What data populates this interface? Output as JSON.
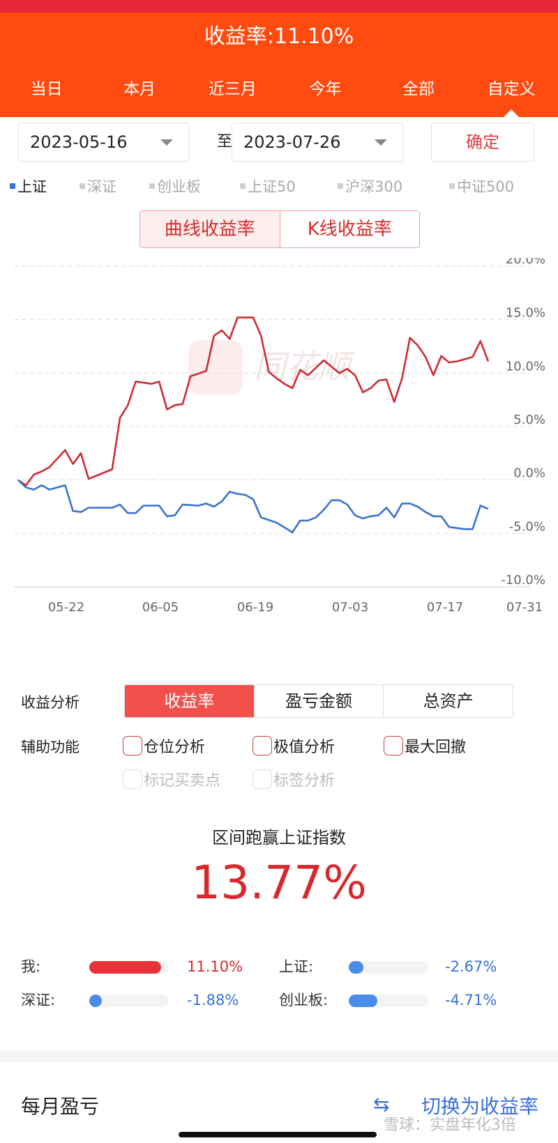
{
  "header": {
    "title": "收益率:11.10%"
  },
  "tabs": [
    {
      "label": "当日",
      "active": false
    },
    {
      "label": "本月",
      "active": false
    },
    {
      "label": "近三月",
      "active": false
    },
    {
      "label": "今年",
      "active": false
    },
    {
      "label": "全部",
      "active": false
    },
    {
      "label": "自定义",
      "active": true
    }
  ],
  "date_range": {
    "start": "2023-05-16",
    "to_label": "至",
    "end": "2023-07-26",
    "confirm_label": "确定"
  },
  "indices": [
    {
      "label": "上证",
      "active": true
    },
    {
      "label": "深证",
      "active": false
    },
    {
      "label": "创业板",
      "active": false
    },
    {
      "label": "上证50",
      "active": false
    },
    {
      "label": "沪深300",
      "active": false
    },
    {
      "label": "中证500",
      "active": false
    }
  ],
  "chart_mode": {
    "curve_label": "曲线收益率",
    "kline_label": "K线收益率"
  },
  "chart_data": {
    "type": "line",
    "y_ticks": [
      "20.0%",
      "15.0%",
      "10.0%",
      "5.0%",
      "0.0%",
      "-5.0%",
      "-10.0%"
    ],
    "x_ticks": [
      "05-22",
      "06-05",
      "06-19",
      "07-03",
      "07-17",
      "07-31"
    ],
    "ylim": [
      -10,
      20
    ],
    "grid": true,
    "watermark": "同花顺",
    "colors": {
      "mine": "#cc2b33",
      "index": "#3a72cc"
    },
    "series": [
      {
        "key": "mine",
        "values": [
          [
            0,
            0
          ],
          [
            1,
            -0.5
          ],
          [
            2,
            0.5
          ],
          [
            3,
            0.8
          ],
          [
            4,
            1.2
          ],
          [
            5,
            2.0
          ],
          [
            6,
            2.8
          ],
          [
            7,
            1.5
          ],
          [
            8,
            2.5
          ],
          [
            9,
            0.1
          ],
          [
            10,
            0.4
          ],
          [
            12,
            1.0
          ],
          [
            13,
            5.8
          ],
          [
            14,
            7.0
          ],
          [
            15,
            9.2
          ],
          [
            16,
            9.1
          ],
          [
            17,
            9.0
          ],
          [
            18,
            9.2
          ],
          [
            19,
            6.6
          ],
          [
            20,
            7.0
          ],
          [
            21,
            7.1
          ],
          [
            22,
            9.7
          ],
          [
            24,
            10.2
          ],
          [
            25,
            13.5
          ],
          [
            26,
            14.0
          ],
          [
            27,
            13.2
          ],
          [
            28,
            15.2
          ],
          [
            30,
            15.2
          ],
          [
            31,
            13.5
          ],
          [
            32,
            10.1
          ],
          [
            33,
            9.5
          ],
          [
            34,
            9.0
          ],
          [
            35,
            8.6
          ],
          [
            36,
            10.3
          ],
          [
            37,
            9.8
          ],
          [
            38,
            10.5
          ],
          [
            39,
            11.2
          ],
          [
            40,
            10.6
          ],
          [
            41,
            10.0
          ],
          [
            42,
            10.4
          ],
          [
            43,
            9.8
          ],
          [
            44,
            8.2
          ],
          [
            45,
            8.6
          ],
          [
            46,
            9.3
          ],
          [
            47,
            9.4
          ],
          [
            48,
            7.3
          ],
          [
            49,
            9.5
          ],
          [
            50,
            13.3
          ],
          [
            51,
            12.6
          ],
          [
            52,
            11.5
          ],
          [
            53,
            9.8
          ],
          [
            54,
            11.6
          ],
          [
            55,
            11.0
          ],
          [
            56,
            11.1
          ],
          [
            57,
            11.3
          ],
          [
            58,
            11.5
          ],
          [
            59,
            13.0
          ],
          [
            60,
            11.1
          ]
        ]
      },
      {
        "key": "index",
        "values": [
          [
            0,
            0
          ],
          [
            1,
            -0.7
          ],
          [
            2,
            -0.9
          ],
          [
            3,
            -0.5
          ],
          [
            4,
            -0.9
          ],
          [
            5,
            -0.7
          ],
          [
            6,
            -0.5
          ],
          [
            7,
            -2.9
          ],
          [
            8,
            -3.0
          ],
          [
            9,
            -2.6
          ],
          [
            12,
            -2.6
          ],
          [
            13,
            -2.3
          ],
          [
            14,
            -3.1
          ],
          [
            15,
            -3.1
          ],
          [
            16,
            -2.4
          ],
          [
            18,
            -2.4
          ],
          [
            19,
            -3.4
          ],
          [
            20,
            -3.3
          ],
          [
            21,
            -2.3
          ],
          [
            23,
            -2.4
          ],
          [
            24,
            -2.2
          ],
          [
            25,
            -2.5
          ],
          [
            26,
            -2.0
          ],
          [
            27,
            -1.1
          ],
          [
            28,
            -1.3
          ],
          [
            29,
            -1.4
          ],
          [
            30,
            -1.8
          ],
          [
            31,
            -3.5
          ],
          [
            33,
            -4.0
          ],
          [
            35,
            -4.9
          ],
          [
            36,
            -3.8
          ],
          [
            37,
            -3.8
          ],
          [
            38,
            -3.5
          ],
          [
            39,
            -2.8
          ],
          [
            40,
            -1.9
          ],
          [
            41,
            -1.9
          ],
          [
            42,
            -2.3
          ],
          [
            43,
            -3.3
          ],
          [
            44,
            -3.6
          ],
          [
            45,
            -3.4
          ],
          [
            46,
            -3.3
          ],
          [
            47,
            -2.6
          ],
          [
            48,
            -3.5
          ],
          [
            49,
            -2.2
          ],
          [
            50,
            -2.2
          ],
          [
            51,
            -2.5
          ],
          [
            52,
            -3.0
          ],
          [
            53,
            -3.4
          ],
          [
            54,
            -3.4
          ],
          [
            55,
            -4.4
          ],
          [
            56,
            -4.5
          ],
          [
            57,
            -4.6
          ],
          [
            58,
            -4.6
          ],
          [
            59,
            -2.4
          ],
          [
            60,
            -2.7
          ]
        ]
      }
    ]
  },
  "analysis": {
    "label": "收益分析",
    "options": [
      {
        "label": "收益率",
        "active": true
      },
      {
        "label": "盈亏金额",
        "active": false
      },
      {
        "label": "总资产",
        "active": false
      }
    ]
  },
  "aux": {
    "label": "辅助功能",
    "options": [
      {
        "label": "仓位分析",
        "enabled": true
      },
      {
        "label": "极值分析",
        "enabled": true
      },
      {
        "label": "最大回撤",
        "enabled": true
      },
      {
        "label": "标记买卖点",
        "enabled": false
      },
      {
        "label": "标签分析",
        "enabled": false
      }
    ]
  },
  "beat": {
    "title": "区间跑赢上证指数",
    "value": "13.77%"
  },
  "comparisons": [
    {
      "label": "我:",
      "value": "11.10%",
      "fill": 0.9,
      "color": "#e8323a",
      "value_color": "#d42a2a"
    },
    {
      "label": "上证:",
      "value": "-2.67%",
      "fill": 0.18,
      "color": "#4a8cea",
      "value_color": "#3a70d8"
    },
    {
      "label": "深证:",
      "value": "-1.88%",
      "fill": 0.13,
      "color": "#4a8cea",
      "value_color": "#3a70d8"
    },
    {
      "label": "创业板:",
      "value": "-4.71%",
      "fill": 0.36,
      "color": "#4a8cea",
      "value_color": "#3a70d8"
    }
  ],
  "bottom": {
    "title": "每月盈亏",
    "switch_icon": "⇆",
    "switch_label": "切换为收益率"
  },
  "watermark": "雪球：实盘年化3倍"
}
